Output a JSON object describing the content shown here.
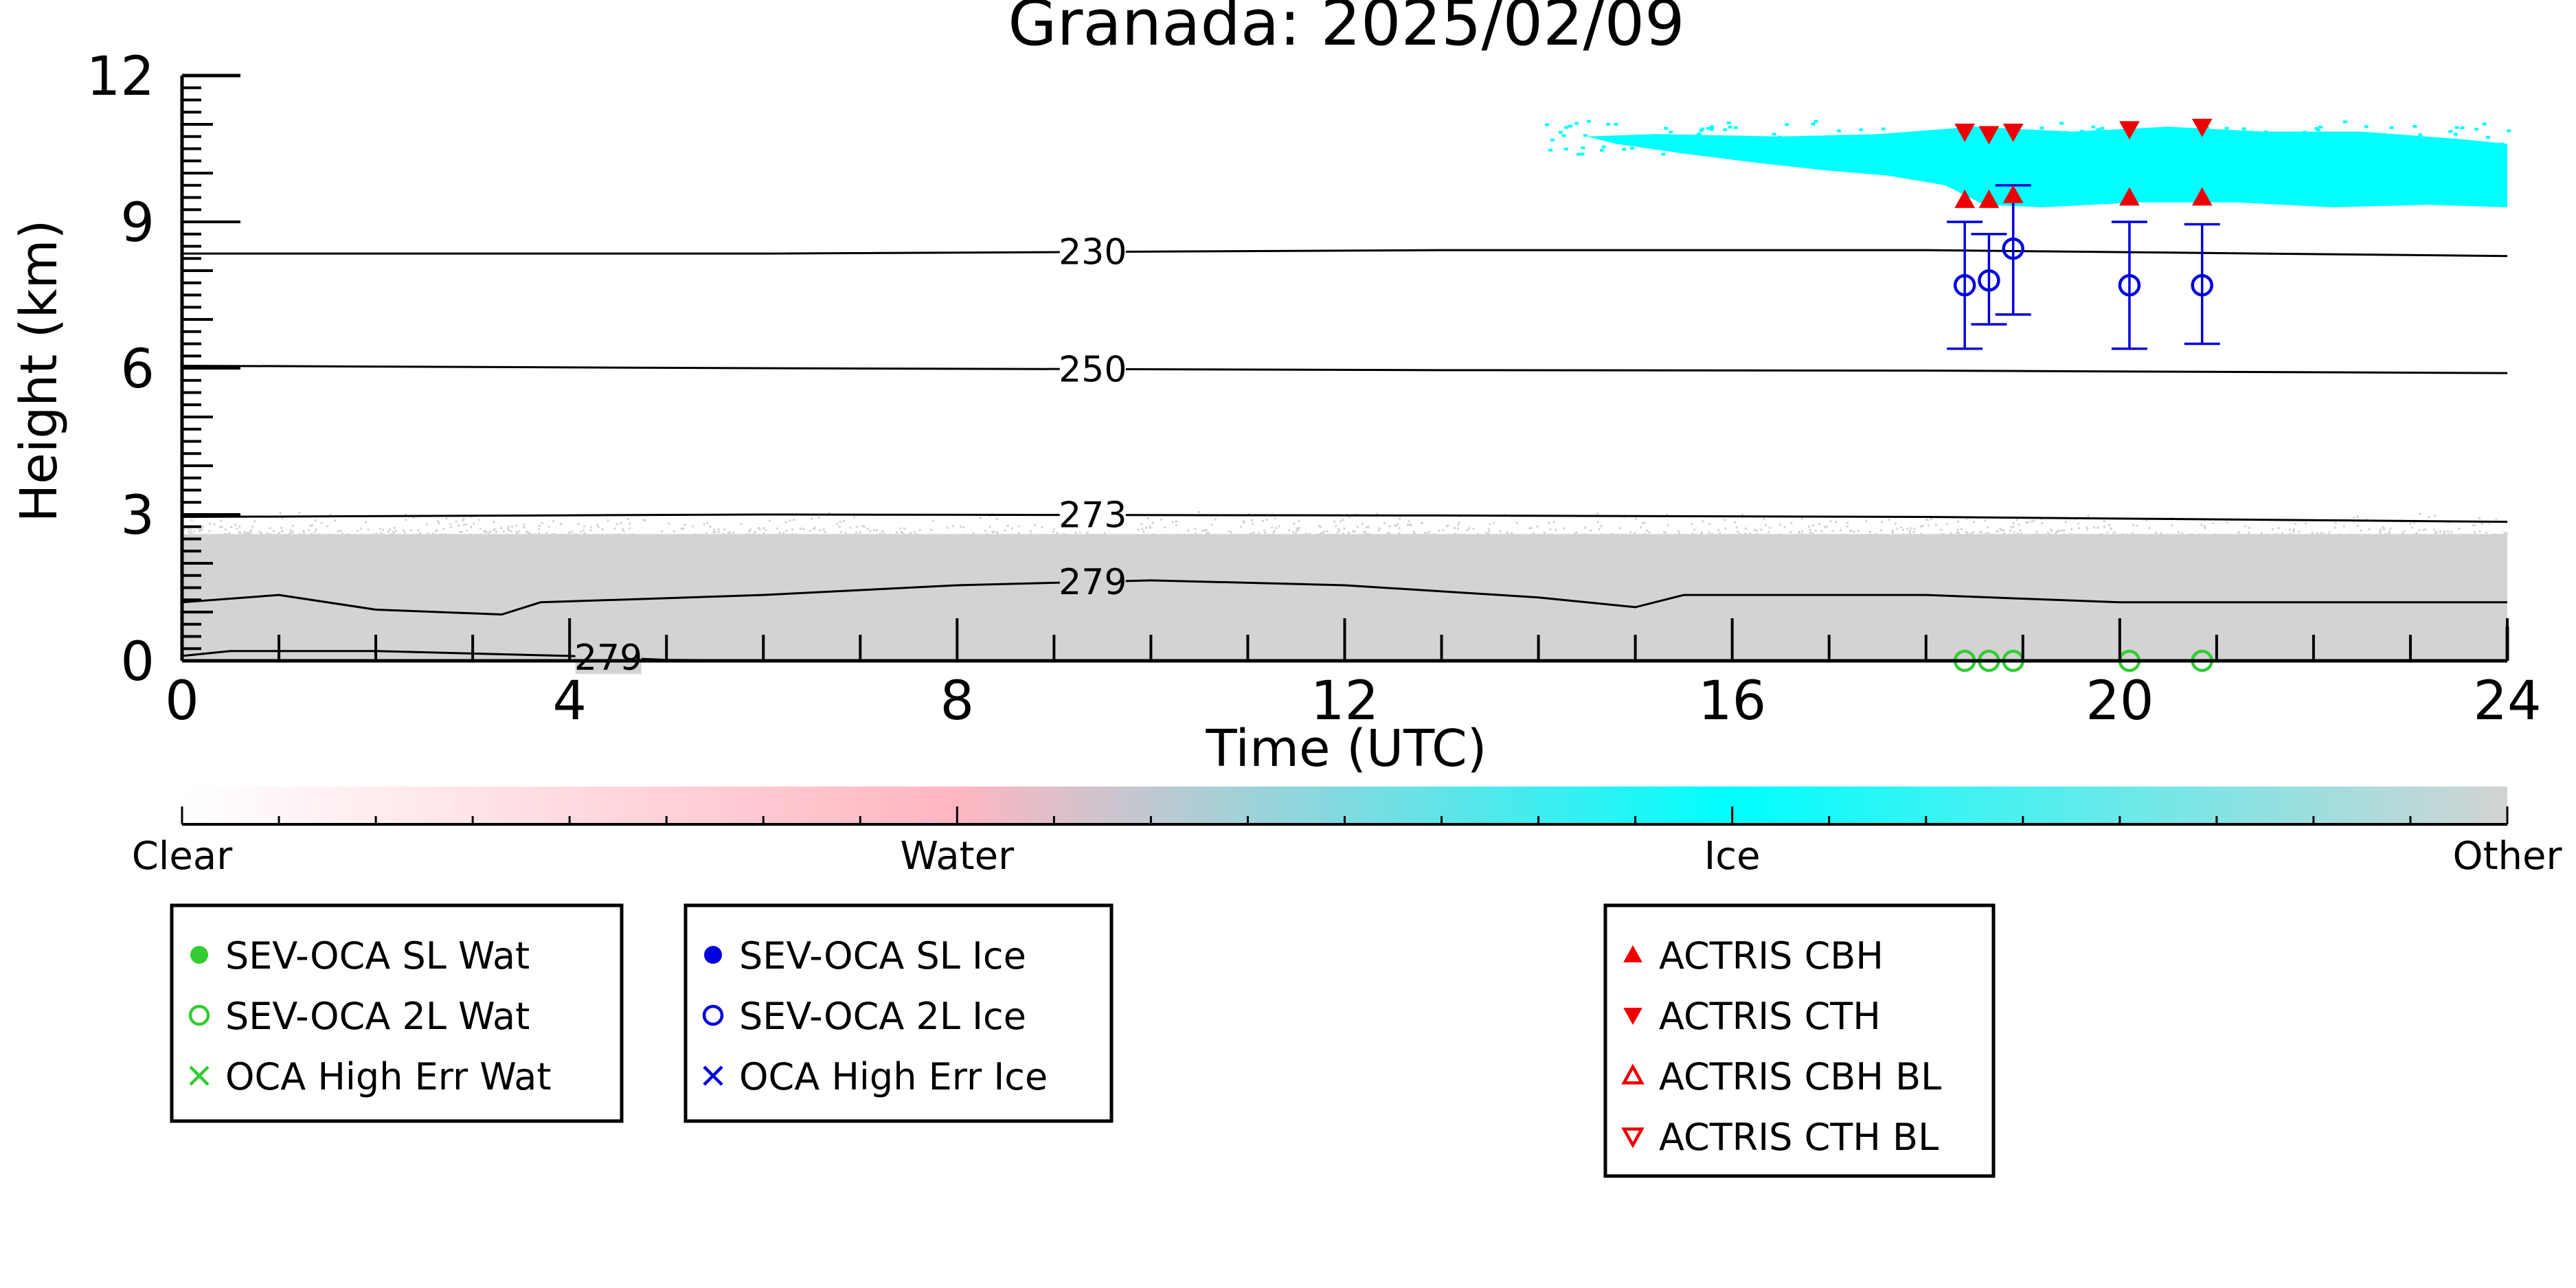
{
  "chart_data": {
    "type": "scatter",
    "title": "Granada: 2025/02/09",
    "xlabel": "Time (UTC)",
    "ylabel": "Height (km)",
    "xlim": [
      0,
      24
    ],
    "ylim": [
      0,
      12
    ],
    "x_ticks": [
      0,
      4,
      8,
      12,
      16,
      20,
      24
    ],
    "y_ticks": [
      0,
      3,
      6,
      9,
      12
    ],
    "grid": false,
    "colors": {
      "water": "#ffb6c1",
      "ice": "#00ffff",
      "other": "#d3d3d3",
      "sev_wat": "#33cc33",
      "sev_ice": "#0000dd",
      "actris": "#ee0000"
    },
    "isotherms": [
      {
        "label": "230",
        "label_x": 9.4,
        "points": [
          [
            0,
            8.35
          ],
          [
            6,
            8.35
          ],
          [
            13,
            8.42
          ],
          [
            18,
            8.42
          ],
          [
            24,
            8.3
          ]
        ]
      },
      {
        "label": "250",
        "label_x": 9.4,
        "points": [
          [
            0,
            6.05
          ],
          [
            6,
            6.0
          ],
          [
            13,
            5.96
          ],
          [
            18,
            5.95
          ],
          [
            24,
            5.9
          ]
        ]
      },
      {
        "label": "273",
        "label_x": 9.4,
        "points": [
          [
            0,
            2.95
          ],
          [
            6,
            3.0
          ],
          [
            13,
            2.98
          ],
          [
            18,
            2.95
          ],
          [
            24,
            2.85
          ]
        ]
      },
      {
        "label": "279",
        "label_x": 9.4,
        "points": [
          [
            0,
            1.2
          ],
          [
            1,
            1.35
          ],
          [
            2,
            1.05
          ],
          [
            3.3,
            0.95
          ],
          [
            3.7,
            1.2
          ],
          [
            6,
            1.35
          ],
          [
            8,
            1.55
          ],
          [
            10,
            1.65
          ],
          [
            12,
            1.55
          ],
          [
            14,
            1.3
          ],
          [
            15,
            1.1
          ],
          [
            15.5,
            1.35
          ],
          [
            18,
            1.35
          ],
          [
            20,
            1.2
          ],
          [
            24,
            1.2
          ]
        ]
      },
      {
        "label": "279",
        "label_x": 4.4,
        "points": [
          [
            0,
            0.1
          ],
          [
            0.5,
            0.2
          ],
          [
            2,
            0.2
          ],
          [
            3,
            0.15
          ],
          [
            4,
            0.1
          ],
          [
            5,
            0.02
          ],
          [
            6,
            0.0
          ]
        ]
      }
    ],
    "colorbar": {
      "labels": [
        "Clear",
        "Water",
        "Ice",
        "Other"
      ],
      "positions": [
        0,
        1,
        2,
        3
      ]
    },
    "series": [
      {
        "name": "SEV-OCA SL Wat",
        "marker": "filled-circle",
        "color": "#33cc33",
        "x": [],
        "y": []
      },
      {
        "name": "SEV-OCA 2L Wat",
        "marker": "open-circle",
        "color": "#33cc33",
        "x": [
          18.4,
          18.65,
          18.9,
          20.1,
          20.85
        ],
        "y": [
          0.0,
          0.0,
          0.0,
          0.0,
          0.0
        ]
      },
      {
        "name": "OCA High Err Wat",
        "marker": "x",
        "color": "#33cc33",
        "x": [],
        "y": []
      },
      {
        "name": "SEV-OCA SL Ice",
        "marker": "filled-circle",
        "color": "#0000dd",
        "x": [],
        "y": []
      },
      {
        "name": "SEV-OCA 2L Ice",
        "marker": "open-circle",
        "color": "#0000dd",
        "x": [
          18.4,
          18.65,
          18.9,
          20.1,
          20.85
        ],
        "y": [
          7.7,
          7.8,
          8.45,
          7.7,
          7.7
        ],
        "yerr_low": [
          6.4,
          6.9,
          7.1,
          6.4,
          6.5
        ],
        "yerr_high": [
          9.0,
          8.75,
          9.75,
          9.0,
          8.95
        ]
      },
      {
        "name": "OCA High Err Ice",
        "marker": "x",
        "color": "#0000dd",
        "x": [],
        "y": []
      },
      {
        "name": "ACTRIS CBH",
        "marker": "filled-triangle-up",
        "color": "#ee0000",
        "x": [
          18.4,
          18.65,
          18.9,
          20.1,
          20.85
        ],
        "y": [
          9.45,
          9.45,
          9.55,
          9.5,
          9.5
        ]
      },
      {
        "name": "ACTRIS CTH",
        "marker": "filled-triangle-down",
        "color": "#ee0000",
        "x": [
          18.4,
          18.65,
          18.9,
          20.1,
          20.85
        ],
        "y": [
          10.85,
          10.8,
          10.85,
          10.9,
          10.95
        ]
      },
      {
        "name": "ACTRIS CBH BL",
        "marker": "open-triangle-up",
        "color": "#ee0000",
        "x": [],
        "y": []
      },
      {
        "name": "ACTRIS CTH BL",
        "marker": "open-triangle-down",
        "color": "#ee0000",
        "x": [],
        "y": []
      }
    ],
    "legend_boxes": [
      [
        "SEV-OCA SL Wat",
        "SEV-OCA 2L Wat",
        "OCA High Err Wat"
      ],
      [
        "SEV-OCA SL Ice",
        "SEV-OCA 2L Ice",
        "OCA High Err Ice"
      ],
      [
        "ACTRIS CBH",
        "ACTRIS CTH",
        "ACTRIS CBH BL",
        "ACTRIS CTH BL"
      ]
    ]
  }
}
